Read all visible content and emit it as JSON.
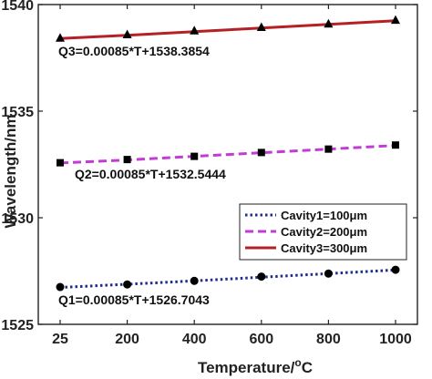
{
  "chart_data": {
    "type": "line",
    "xlabel": "Temperature/",
    "xlabel_unit": "C",
    "xlabel_sup": "o",
    "ylabel": "Wavelength/nm",
    "x_ticks": [
      "25",
      "200",
      "400",
      "600",
      "800",
      "1000"
    ],
    "y_ticks": [
      "1525",
      "1530",
      "1535",
      "1540"
    ],
    "ylim": [
      1525,
      1540
    ],
    "categories": [
      25,
      200,
      400,
      600,
      800,
      1000
    ],
    "legend_position": "center-right",
    "series": [
      {
        "name": "Cavity1=100μm",
        "color": "#1f2d8c",
        "line_style": "dotted",
        "marker": "circle",
        "values": [
          1526.75,
          1526.87,
          1527.04,
          1527.24,
          1527.38,
          1527.56
        ],
        "fit_values": [
          1526.73,
          1526.88,
          1527.04,
          1527.21,
          1527.38,
          1527.55
        ],
        "equation": "Q1=0.00085*T+1526.7043"
      },
      {
        "name": "Cavity2=200μm",
        "color": "#c23bd4",
        "line_style": "dashed",
        "marker": "square",
        "values": [
          1532.58,
          1532.73,
          1532.88,
          1533.06,
          1533.22,
          1533.41
        ],
        "fit_values": [
          1532.57,
          1532.71,
          1532.88,
          1533.05,
          1533.22,
          1533.39
        ],
        "equation": "Q2=0.00085*T+1532.5444"
      },
      {
        "name": "Cavity3=300μm",
        "color": "#b52025",
        "line_style": "solid",
        "marker": "triangle",
        "values": [
          1538.43,
          1538.59,
          1538.77,
          1538.93,
          1539.09,
          1539.27
        ],
        "fit_values": [
          1538.41,
          1538.56,
          1538.73,
          1538.9,
          1539.07,
          1539.24
        ],
        "equation": "Q3=0.00085*T+1538.3854"
      }
    ]
  }
}
